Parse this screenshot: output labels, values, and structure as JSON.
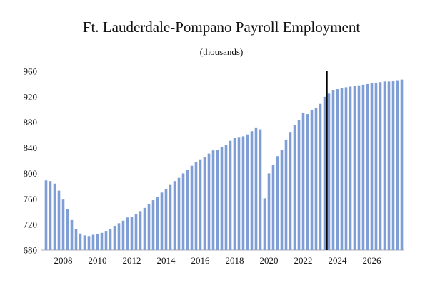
{
  "chart_data": {
    "type": "bar",
    "title": "Ft. Lauderdale-Pompano Payroll Employment",
    "subtitle": "(thousands)",
    "xlabel": "",
    "ylabel": "",
    "ylim": [
      680,
      960
    ],
    "yticks": [
      680,
      720,
      760,
      800,
      840,
      880,
      920,
      960
    ],
    "xticks": [
      "2008",
      "2010",
      "2012",
      "2014",
      "2016",
      "2018",
      "2020",
      "2022",
      "2024",
      "2026"
    ],
    "x_start": "2007 Q1",
    "frequency": "quarterly",
    "vertical_line_at": "2023 Q3",
    "bar_color": "#7f9ed6",
    "grid": false,
    "values": [
      789,
      788,
      784,
      773,
      759,
      744,
      727,
      713,
      706,
      703,
      702,
      704,
      705,
      707,
      710,
      713,
      718,
      722,
      726,
      731,
      732,
      736,
      741,
      746,
      752,
      758,
      763,
      770,
      776,
      783,
      788,
      793,
      800,
      806,
      812,
      818,
      822,
      826,
      831,
      836,
      837,
      841,
      845,
      851,
      856,
      857,
      858,
      861,
      866,
      872,
      869,
      761,
      800,
      813,
      827,
      837,
      853,
      865,
      876,
      884,
      895,
      893,
      899,
      903,
      909,
      920,
      925,
      930,
      932,
      934,
      935,
      936,
      937,
      938,
      939,
      940,
      941,
      942,
      943,
      944,
      944,
      945,
      946,
      947
    ]
  }
}
